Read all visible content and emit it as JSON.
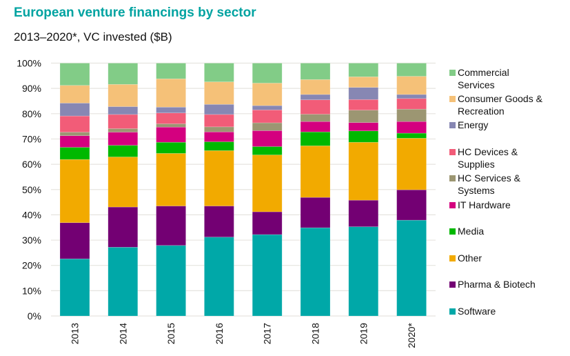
{
  "header": {
    "title": "European venture financings by sector",
    "subtitle": "2013–2020*, VC invested ($B)"
  },
  "chart_data": {
    "type": "bar",
    "stacked": true,
    "normalized": true,
    "title": "European venture financings by sector",
    "subtitle": "2013–2020*, VC invested ($B)",
    "xlabel": "",
    "ylabel": "",
    "ylim": [
      0,
      100
    ],
    "y_ticks": [
      "0%",
      "10%",
      "20%",
      "30%",
      "40%",
      "50%",
      "60%",
      "70%",
      "80%",
      "90%",
      "100%"
    ],
    "grid": true,
    "legend_position": "right",
    "categories": [
      "2013",
      "2014",
      "2015",
      "2016",
      "2017",
      "2018",
      "2019",
      "2020*"
    ],
    "series": [
      {
        "name": "Software",
        "color": "#00A8A8",
        "values": [
          22.6,
          27.2,
          27.9,
          31.2,
          32.2,
          34.9,
          35.3,
          37.9
        ]
      },
      {
        "name": "Pharma & Biotech",
        "color": "#730073",
        "values": [
          14.3,
          15.9,
          15.6,
          12.3,
          9.0,
          12.0,
          10.5,
          12.0
        ]
      },
      {
        "name": "Other",
        "color": "#F2AA00",
        "values": [
          25.0,
          19.8,
          20.8,
          21.9,
          22.5,
          20.4,
          22.9,
          20.4
        ]
      },
      {
        "name": "Media",
        "color": "#00B800",
        "values": [
          4.8,
          4.6,
          4.4,
          3.5,
          3.3,
          5.5,
          4.5,
          2.0
        ]
      },
      {
        "name": "IT Hardware",
        "color": "#D4007F",
        "values": [
          4.6,
          5.2,
          6.0,
          3.9,
          6.3,
          4.1,
          3.3,
          4.6
        ]
      },
      {
        "name": "HC Services & Systems",
        "color": "#9C9672",
        "values": [
          1.4,
          1.4,
          1.3,
          2.0,
          3.1,
          2.9,
          4.9,
          4.9
        ]
      },
      {
        "name": "HC Devices & Supplies",
        "color": "#F25C78",
        "values": [
          6.4,
          5.6,
          4.3,
          4.9,
          5.1,
          5.7,
          4.2,
          4.2
        ]
      },
      {
        "name": "Energy",
        "color": "#8787B3",
        "values": [
          5.1,
          3.1,
          2.3,
          4.0,
          1.7,
          2.1,
          4.8,
          1.6
        ]
      },
      {
        "name": "Consumer Goods & Recreation",
        "color": "#F5C178",
        "values": [
          7.0,
          8.8,
          11.2,
          8.9,
          8.9,
          5.9,
          4.2,
          7.2
        ]
      },
      {
        "name": "Commercial Services",
        "color": "#82CC87",
        "values": [
          8.8,
          8.4,
          6.2,
          7.4,
          7.9,
          6.5,
          5.4,
          5.2
        ]
      }
    ]
  },
  "legend": {
    "items": [
      {
        "label_line1": "Commercial",
        "label_line2": "Services",
        "color": "#82CC87"
      },
      {
        "label_line1": "Consumer Goods &",
        "label_line2": "Recreation",
        "color": "#F5C178"
      },
      {
        "label_line1": "Energy",
        "label_line2": "",
        "color": "#8787B3"
      },
      {
        "label_line1": "HC Devices &",
        "label_line2": "Supplies",
        "color": "#F25C78"
      },
      {
        "label_line1": "HC Services &",
        "label_line2": "Systems",
        "color": "#9C9672"
      },
      {
        "label_line1": "IT Hardware",
        "label_line2": "",
        "color": "#D4007F"
      },
      {
        "label_line1": "Media",
        "label_line2": "",
        "color": "#00B800"
      },
      {
        "label_line1": "Other",
        "label_line2": "",
        "color": "#F2AA00"
      },
      {
        "label_line1": "Pharma & Biotech",
        "label_line2": "",
        "color": "#730073"
      },
      {
        "label_line1": "Software",
        "label_line2": "",
        "color": "#00A8A8"
      }
    ]
  }
}
